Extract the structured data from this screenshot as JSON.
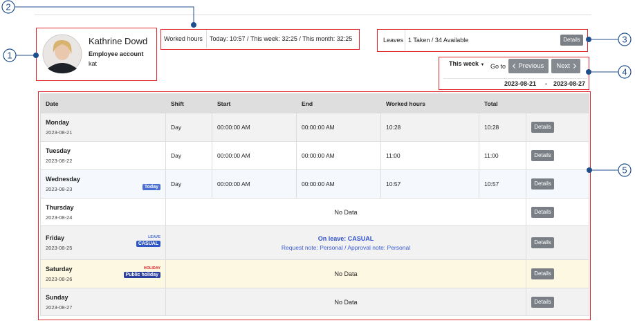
{
  "callouts": [
    "1",
    "2",
    "3",
    "4",
    "5"
  ],
  "profile": {
    "name": "Kathrine Dowd",
    "role": "Employee account",
    "username": "kat"
  },
  "worked": {
    "label": "Worked hours",
    "summary": "Today: 10:57 / This week: 32:25 / This month: 32:25"
  },
  "leaves": {
    "label": "Leaves",
    "summary": "1 Taken / 34 Available",
    "button": "Details"
  },
  "nav": {
    "period": "This week",
    "goto": "Go to",
    "previous": "Previous",
    "next": "Next",
    "start": "2023-08-21",
    "separator": "-",
    "end": "2023-08-27"
  },
  "table": {
    "columns": [
      "Date",
      "Shift",
      "Start",
      "End",
      "Worked hours",
      "Total"
    ],
    "rows": [
      {
        "day": "Monday",
        "date": "2023-08-21",
        "shift": "Day",
        "start": "00:00:00 AM",
        "end": "00:00:00 AM",
        "worked": "10:28",
        "total": "10:28",
        "action": "Details"
      },
      {
        "day": "Tuesday",
        "date": "2023-08-22",
        "shift": "Day",
        "start": "00:00:00 AM",
        "end": "00:00:00 AM",
        "worked": "11:00",
        "total": "11:00",
        "action": "Details"
      },
      {
        "day": "Wednesday",
        "date": "2023-08-23",
        "badge": "Today",
        "shift": "Day",
        "start": "00:00:00 AM",
        "end": "00:00:00 AM",
        "worked": "10:57",
        "total": "10:57",
        "action": "Details"
      },
      {
        "day": "Thursday",
        "date": "2023-08-24",
        "message": "No Data",
        "action": "Details"
      },
      {
        "day": "Friday",
        "date": "2023-08-25",
        "tag": "LEAVE",
        "badge": "CASUAL",
        "message": "On leave: CASUAL",
        "note": "Request note: Personal / Approval note: Personal",
        "action": "Details"
      },
      {
        "day": "Saturday",
        "date": "2023-08-26",
        "tag": "HOLIDAY",
        "badge": "Public holiday",
        "message": "No Data",
        "action": "Details"
      },
      {
        "day": "Sunday",
        "date": "2023-08-27",
        "message": "No Data",
        "action": "Details"
      }
    ]
  }
}
